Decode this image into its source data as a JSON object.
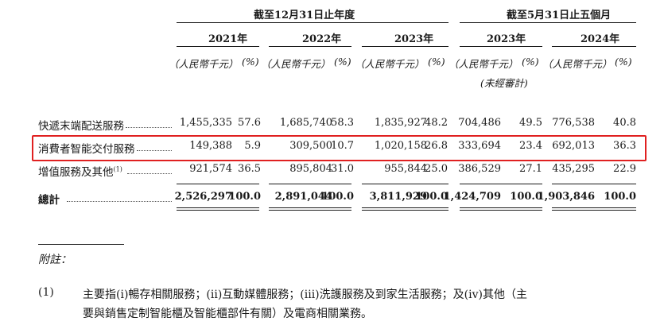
{
  "header": {
    "group_year_label": "截至12月31日止年度",
    "group_period_label": "截至5月31日止五個月",
    "years": [
      "2021年",
      "2022年",
      "2023年",
      "2023年",
      "2024年"
    ],
    "unit_rmb": "（人民幣千元）",
    "unit_pct": "(%)",
    "unaudited": "(未經審計)"
  },
  "rows": [
    {
      "label": "快遞末端配送服務",
      "values": [
        "1,455,335",
        "57.6",
        "1,685,740",
        "58.3",
        "1,835,927",
        "48.2",
        "704,486",
        "49.5",
        "776,538",
        "40.8"
      ]
    },
    {
      "label": "消費者智能交付服務",
      "values": [
        "149,388",
        "5.9",
        "309,500",
        "10.7",
        "1,020,158",
        "26.8",
        "333,694",
        "23.4",
        "692,013",
        "36.3"
      ],
      "highlighted": true
    },
    {
      "label": "增值服務及其他",
      "label_sup": "(1)",
      "values": [
        "921,574",
        "36.5",
        "895,804",
        "31.0",
        "955,844",
        "25.0",
        "386,529",
        "27.1",
        "435,295",
        "22.9"
      ]
    },
    {
      "label": "總計",
      "values": [
        "2,526,297",
        "100.0",
        "2,891,044",
        "100.0",
        "3,811,929",
        "100.0",
        "1,424,709",
        "100.0",
        "1,903,846",
        "100.0"
      ],
      "total": true
    }
  ],
  "notes": {
    "title": "附註：",
    "items": [
      {
        "marker": "(1)",
        "line1": "主要指(i)暢存相關服務；(ii)互動媒體服務；(iii)洗護服務及到家生活服務；及(iv)其他（主",
        "line2": "要與銷售定制智能櫃及智能櫃部件有關）及電商相關業務。"
      }
    ]
  },
  "colors": {
    "highlight_border": "#e02020",
    "text": "#1a1a1a"
  }
}
